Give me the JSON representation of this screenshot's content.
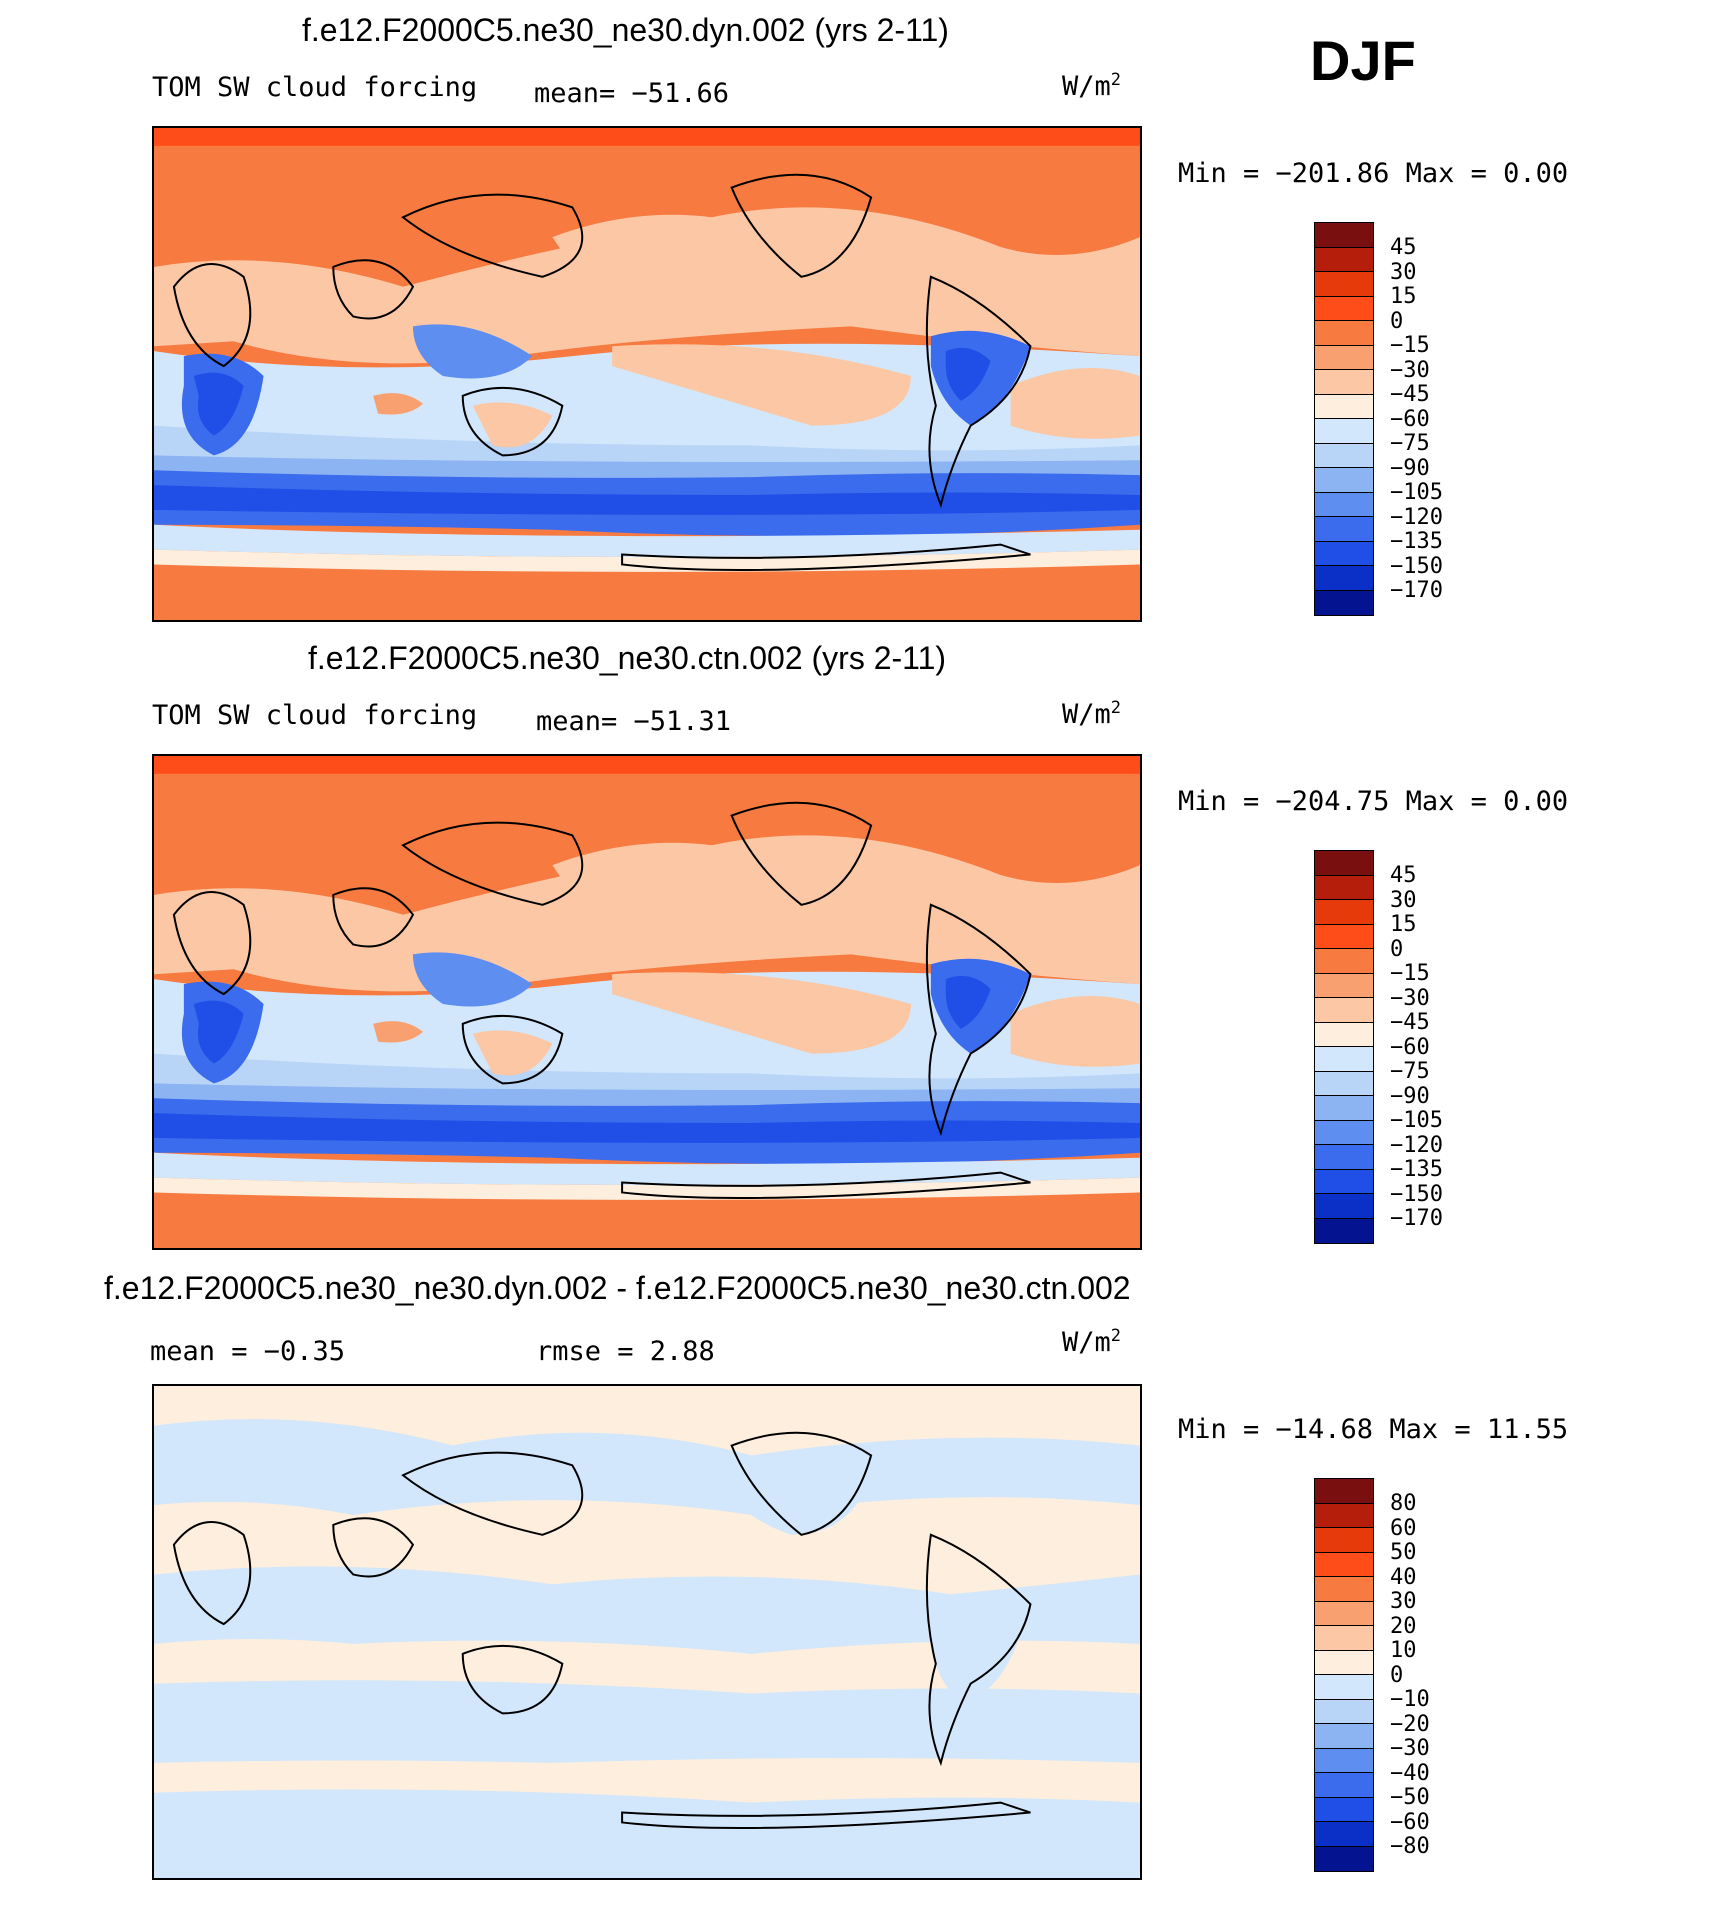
{
  "season": "DJF",
  "palettes": {
    "abs": [
      "#7a0f0f",
      "#b41e0a",
      "#e63a0a",
      "#ff4d1a",
      "#f77a40",
      "#f9a070",
      "#fcc7a5",
      "#fdeedd",
      "#d2e7fb",
      "#b8d4f7",
      "#8db4f2",
      "#5e8ef0",
      "#3a6ced",
      "#1f4fe6",
      "#0b30c8",
      "#04138f"
    ],
    "diff": [
      "#7a0f0f",
      "#b41e0a",
      "#e63a0a",
      "#ff4d1a",
      "#f77a40",
      "#f9a070",
      "#fcc7a5",
      "#fdeedd",
      "#d2e7fb",
      "#b8d4f7",
      "#8db4f2",
      "#5e8ef0",
      "#3a6ced",
      "#1f4fe6",
      "#0b30c8",
      "#04138f"
    ]
  },
  "panels": [
    {
      "title": "f.e12.F2000C5.ne30_ne30.dyn.002 (yrs 2-11)",
      "left_label": "TOM SW cloud forcing",
      "center_label": "mean= −51.66",
      "right_label": "",
      "units": "W/m",
      "units_exp": "2",
      "minmax": "Min = −201.86 Max =    0.00",
      "colorbar_labels": [
        "45",
        "30",
        "15",
        "0",
        "−15",
        "−30",
        "−45",
        "−60",
        "−75",
        "−90",
        "−105",
        "−120",
        "−135",
        "−150",
        "−170"
      ]
    },
    {
      "title": "f.e12.F2000C5.ne30_ne30.ctn.002 (yrs 2-11)",
      "left_label": "TOM SW cloud forcing",
      "center_label": "mean= −51.31",
      "right_label": "",
      "units": "W/m",
      "units_exp": "2",
      "minmax": "Min = −204.75 Max =    0.00",
      "colorbar_labels": [
        "45",
        "30",
        "15",
        "0",
        "−15",
        "−30",
        "−45",
        "−60",
        "−75",
        "−90",
        "−105",
        "−120",
        "−135",
        "−150",
        "−170"
      ]
    },
    {
      "title": "f.e12.F2000C5.ne30_ne30.dyn.002 - f.e12.F2000C5.ne30_ne30.ctn.002",
      "left_label": "mean =   −0.35",
      "center_label": "rmse =    2.88",
      "right_label": "",
      "units": "W/m",
      "units_exp": "2",
      "minmax": "Min = −14.68 Max =   11.55",
      "colorbar_labels": [
        "80",
        "60",
        "50",
        "40",
        "30",
        "20",
        "10",
        "0",
        "−10",
        "−20",
        "−30",
        "−40",
        "−50",
        "−60",
        "−80"
      ]
    }
  ]
}
